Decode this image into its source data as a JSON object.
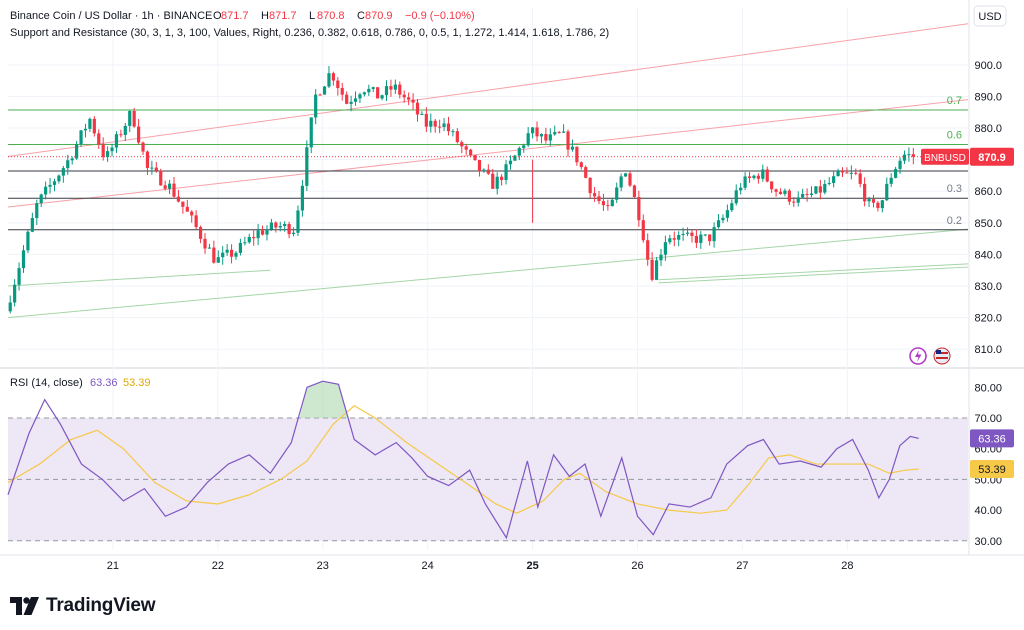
{
  "header": {
    "symbol_line": "Binance Coin / US Dollar · 1h · BINANCE",
    "ohlc": [
      {
        "k": "O",
        "v": "871.7"
      },
      {
        "k": "H",
        "v": "871.7"
      },
      {
        "k": "L",
        "v": "870.8"
      },
      {
        "k": "C",
        "v": "870.9"
      }
    ],
    "change": "−0.9 (−0.10%)",
    "indicator_line": "Support and Resistance (30, 3, 1, 3, 100, Values, Right, 0.236, 0.382, 0.618, 0.786, 0, 0.5, 1, 1.272, 1.414, 1.618, 1.786, 2)"
  },
  "currency_button": "USD",
  "ticker_badge": "BNBUSD",
  "price_badge": "870.9",
  "rsi": {
    "title": "RSI (14, close)",
    "value": "63.36",
    "ma_value": "53.39"
  },
  "logo_text": "TradingView",
  "colors": {
    "up": "#089981",
    "down": "#f23645",
    "rsi_line": "#7e57c2",
    "rsi_ma": "#f7c948",
    "rsi_band": "#ede7f6",
    "level_line": "#2e7d32",
    "grid": "#f0f3fa"
  },
  "chart_data": [
    {
      "type": "candlestick",
      "title": "Binance Coin / US Dollar · 1h · BINANCE",
      "y_axis": {
        "ticks": [
          810,
          820,
          830,
          840,
          850,
          860,
          870,
          880,
          890,
          900
        ],
        "range": [
          805,
          918
        ]
      },
      "x_axis": {
        "ticks": [
          "21",
          "22",
          "23",
          "24",
          "25",
          "26",
          "27",
          "28"
        ]
      },
      "last_price": 870.9,
      "price_path": [
        {
          "x": 20.0,
          "y": 822
        },
        {
          "x": 20.3,
          "y": 856
        },
        {
          "x": 20.6,
          "y": 870
        },
        {
          "x": 20.8,
          "y": 883
        },
        {
          "x": 20.95,
          "y": 870
        },
        {
          "x": 21.2,
          "y": 885
        },
        {
          "x": 21.35,
          "y": 867
        },
        {
          "x": 21.55,
          "y": 862
        },
        {
          "x": 21.75,
          "y": 852
        },
        {
          "x": 22.0,
          "y": 838
        },
        {
          "x": 22.2,
          "y": 841
        },
        {
          "x": 22.4,
          "y": 847
        },
        {
          "x": 22.6,
          "y": 849
        },
        {
          "x": 22.75,
          "y": 848
        },
        {
          "x": 22.85,
          "y": 868
        },
        {
          "x": 22.95,
          "y": 890
        },
        {
          "x": 23.1,
          "y": 898
        },
        {
          "x": 23.25,
          "y": 888
        },
        {
          "x": 23.4,
          "y": 893
        },
        {
          "x": 23.55,
          "y": 890
        },
        {
          "x": 23.7,
          "y": 893
        },
        {
          "x": 23.85,
          "y": 888
        },
        {
          "x": 24.0,
          "y": 881
        },
        {
          "x": 24.15,
          "y": 882
        },
        {
          "x": 24.3,
          "y": 876
        },
        {
          "x": 24.45,
          "y": 869
        },
        {
          "x": 24.65,
          "y": 862
        },
        {
          "x": 24.8,
          "y": 868
        },
        {
          "x": 25.0,
          "y": 879
        },
        {
          "x": 25.15,
          "y": 876
        },
        {
          "x": 25.3,
          "y": 878
        },
        {
          "x": 25.45,
          "y": 870
        },
        {
          "x": 25.6,
          "y": 859
        },
        {
          "x": 25.75,
          "y": 853
        },
        {
          "x": 25.9,
          "y": 868
        },
        {
          "x": 26.05,
          "y": 851
        },
        {
          "x": 26.15,
          "y": 833
        },
        {
          "x": 26.3,
          "y": 846
        },
        {
          "x": 26.5,
          "y": 845
        },
        {
          "x": 26.7,
          "y": 845
        },
        {
          "x": 26.85,
          "y": 852
        },
        {
          "x": 27.0,
          "y": 862
        },
        {
          "x": 27.2,
          "y": 866
        },
        {
          "x": 27.35,
          "y": 860
        },
        {
          "x": 27.55,
          "y": 857
        },
        {
          "x": 27.75,
          "y": 860
        },
        {
          "x": 27.95,
          "y": 865
        },
        {
          "x": 28.1,
          "y": 865
        },
        {
          "x": 28.25,
          "y": 854
        },
        {
          "x": 28.35,
          "y": 857
        },
        {
          "x": 28.45,
          "y": 866
        },
        {
          "x": 28.55,
          "y": 871.7
        },
        {
          "x": 28.65,
          "y": 870.9
        }
      ],
      "horizontal_levels": [
        {
          "label": "0.7",
          "y": 885.7
        },
        {
          "label": "0.6",
          "y": 874.8
        },
        {
          "label": "0.3",
          "y": 857.8
        },
        {
          "label": "0.2",
          "y": 847.8
        },
        {
          "label": "",
          "y": 866.4
        }
      ],
      "trend_lines": [
        {
          "color": "red",
          "from": {
            "x": 20.0,
            "y": 871
          },
          "to": {
            "x": 29.15,
            "y": 913
          }
        },
        {
          "color": "red",
          "from": {
            "x": 20.0,
            "y": 855
          },
          "to": {
            "x": 29.15,
            "y": 889
          }
        },
        {
          "color": "green",
          "from": {
            "x": 20.0,
            "y": 820
          },
          "to": {
            "x": 29.15,
            "y": 848
          }
        },
        {
          "color": "green",
          "from": {
            "x": 20.0,
            "y": 830
          },
          "to": {
            "x": 22.5,
            "y": 835
          }
        },
        {
          "color": "green",
          "from": {
            "x": 26.2,
            "y": 831
          },
          "to": {
            "x": 29.15,
            "y": 836
          }
        },
        {
          "color": "green",
          "from": {
            "x": 26.2,
            "y": 832
          },
          "to": {
            "x": 29.15,
            "y": 837
          }
        }
      ]
    },
    {
      "type": "line",
      "title": "RSI (14, close)",
      "y_axis": {
        "ticks": [
          30,
          40,
          50,
          60,
          70,
          80
        ],
        "range": [
          27,
          85
        ]
      },
      "band": [
        30,
        70
      ],
      "midline": 50,
      "series": [
        {
          "name": "RSI (14, close)",
          "values": [
            {
              "x": 20.0,
              "y": 45
            },
            {
              "x": 20.2,
              "y": 65
            },
            {
              "x": 20.35,
              "y": 76
            },
            {
              "x": 20.5,
              "y": 68
            },
            {
              "x": 20.7,
              "y": 55
            },
            {
              "x": 20.9,
              "y": 50
            },
            {
              "x": 21.1,
              "y": 43
            },
            {
              "x": 21.3,
              "y": 47
            },
            {
              "x": 21.5,
              "y": 38
            },
            {
              "x": 21.7,
              "y": 41
            },
            {
              "x": 21.9,
              "y": 49
            },
            {
              "x": 22.1,
              "y": 55
            },
            {
              "x": 22.3,
              "y": 58
            },
            {
              "x": 22.5,
              "y": 52
            },
            {
              "x": 22.7,
              "y": 62
            },
            {
              "x": 22.85,
              "y": 80
            },
            {
              "x": 23.0,
              "y": 82
            },
            {
              "x": 23.15,
              "y": 81
            },
            {
              "x": 23.3,
              "y": 63
            },
            {
              "x": 23.5,
              "y": 58
            },
            {
              "x": 23.7,
              "y": 62
            },
            {
              "x": 23.85,
              "y": 57
            },
            {
              "x": 24.0,
              "y": 51
            },
            {
              "x": 24.2,
              "y": 48
            },
            {
              "x": 24.4,
              "y": 53
            },
            {
              "x": 24.55,
              "y": 42
            },
            {
              "x": 24.75,
              "y": 31
            },
            {
              "x": 24.95,
              "y": 56
            },
            {
              "x": 25.05,
              "y": 41
            },
            {
              "x": 25.2,
              "y": 58
            },
            {
              "x": 25.35,
              "y": 51
            },
            {
              "x": 25.5,
              "y": 55
            },
            {
              "x": 25.65,
              "y": 38
            },
            {
              "x": 25.85,
              "y": 57
            },
            {
              "x": 26.0,
              "y": 38
            },
            {
              "x": 26.15,
              "y": 32
            },
            {
              "x": 26.3,
              "y": 42
            },
            {
              "x": 26.5,
              "y": 41
            },
            {
              "x": 26.7,
              "y": 44
            },
            {
              "x": 26.85,
              "y": 55
            },
            {
              "x": 27.05,
              "y": 61
            },
            {
              "x": 27.2,
              "y": 63
            },
            {
              "x": 27.35,
              "y": 55
            },
            {
              "x": 27.55,
              "y": 56
            },
            {
              "x": 27.75,
              "y": 54
            },
            {
              "x": 27.9,
              "y": 60
            },
            {
              "x": 28.05,
              "y": 63
            },
            {
              "x": 28.2,
              "y": 53
            },
            {
              "x": 28.3,
              "y": 44
            },
            {
              "x": 28.4,
              "y": 50
            },
            {
              "x": 28.5,
              "y": 61
            },
            {
              "x": 28.6,
              "y": 64
            },
            {
              "x": 28.68,
              "y": 63.36
            }
          ]
        },
        {
          "name": "",
          "values": [
            {
              "x": 20.0,
              "y": 49
            },
            {
              "x": 20.3,
              "y": 55
            },
            {
              "x": 20.6,
              "y": 63
            },
            {
              "x": 20.85,
              "y": 66
            },
            {
              "x": 21.1,
              "y": 60
            },
            {
              "x": 21.4,
              "y": 49
            },
            {
              "x": 21.7,
              "y": 43
            },
            {
              "x": 22.0,
              "y": 42
            },
            {
              "x": 22.3,
              "y": 45
            },
            {
              "x": 22.6,
              "y": 50
            },
            {
              "x": 22.85,
              "y": 56
            },
            {
              "x": 23.1,
              "y": 68
            },
            {
              "x": 23.3,
              "y": 74
            },
            {
              "x": 23.5,
              "y": 70
            },
            {
              "x": 23.8,
              "y": 62
            },
            {
              "x": 24.1,
              "y": 55
            },
            {
              "x": 24.4,
              "y": 48
            },
            {
              "x": 24.65,
              "y": 42
            },
            {
              "x": 24.85,
              "y": 39
            },
            {
              "x": 25.1,
              "y": 43
            },
            {
              "x": 25.3,
              "y": 50
            },
            {
              "x": 25.45,
              "y": 52
            },
            {
              "x": 25.7,
              "y": 46
            },
            {
              "x": 26.0,
              "y": 42
            },
            {
              "x": 26.3,
              "y": 40
            },
            {
              "x": 26.6,
              "y": 39
            },
            {
              "x": 26.85,
              "y": 40
            },
            {
              "x": 27.05,
              "y": 48
            },
            {
              "x": 27.25,
              "y": 57
            },
            {
              "x": 27.45,
              "y": 58
            },
            {
              "x": 27.7,
              "y": 55
            },
            {
              "x": 27.95,
              "y": 55
            },
            {
              "x": 28.2,
              "y": 55
            },
            {
              "x": 28.4,
              "y": 52
            },
            {
              "x": 28.55,
              "y": 53
            },
            {
              "x": 28.68,
              "y": 53.39
            }
          ]
        }
      ]
    }
  ]
}
